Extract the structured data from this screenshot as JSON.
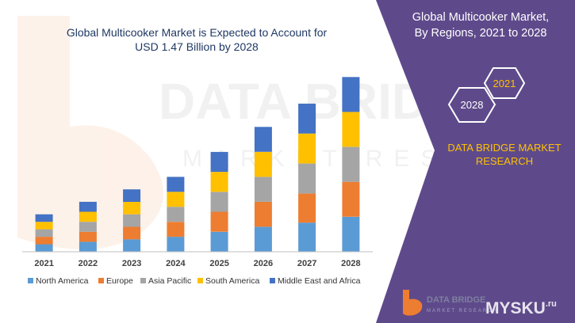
{
  "chart_data": {
    "type": "bar",
    "stacked": true,
    "title": "Global Multicooker Market is Expected to Account for USD 1.47 Billion by 2028",
    "title_lines": [
      "Global Multicooker Market is Expected to Account for",
      "USD 1.47 Billion by 2028"
    ],
    "categories": [
      "2021",
      "2022",
      "2023",
      "2024",
      "2025",
      "2026",
      "2027",
      "2028"
    ],
    "series": [
      {
        "name": "North America",
        "color": "#5b9bd5",
        "values": [
          9,
          12,
          15,
          18,
          24,
          30,
          35,
          42
        ]
      },
      {
        "name": "Europe",
        "color": "#ed7d31",
        "values": [
          9,
          12,
          15,
          18,
          24,
          30,
          35,
          42
        ]
      },
      {
        "name": "Asia Pacific",
        "color": "#a5a5a5",
        "values": [
          9,
          12,
          15,
          18,
          24,
          30,
          36,
          42
        ]
      },
      {
        "name": "South America",
        "color": "#ffc000",
        "values": [
          9,
          12,
          15,
          18,
          24,
          30,
          36,
          42
        ]
      },
      {
        "name": "Middle East and Africa",
        "color": "#4472c4",
        "values": [
          9,
          12,
          15,
          18,
          24,
          30,
          36,
          42
        ]
      }
    ],
    "ylim": [
      0,
      215
    ],
    "grid": false,
    "legend_position": "bottom",
    "xlabel": "",
    "ylabel": ""
  },
  "side_panel": {
    "title_lines": [
      "Global Multicooker Market,",
      "By Regions, 2021 to 2028"
    ],
    "badge_start": "2021",
    "badge_end": "2028",
    "brand_lines": [
      "DATA BRIDGE MARKET",
      "RESEARCH"
    ],
    "background_color": "#5e4a8b",
    "title_color": "#ffffff",
    "brand_color": "#ffc000"
  },
  "footer": {
    "logo_name": "DATA BRIDGE",
    "logo_tagline": "MARKET RESEARCH",
    "site_mark": "MYSKU",
    "site_suffix": ".ru"
  },
  "watermark": {
    "word1": "DATA BRIDGE",
    "word2": "MARKET RESEARCH"
  }
}
